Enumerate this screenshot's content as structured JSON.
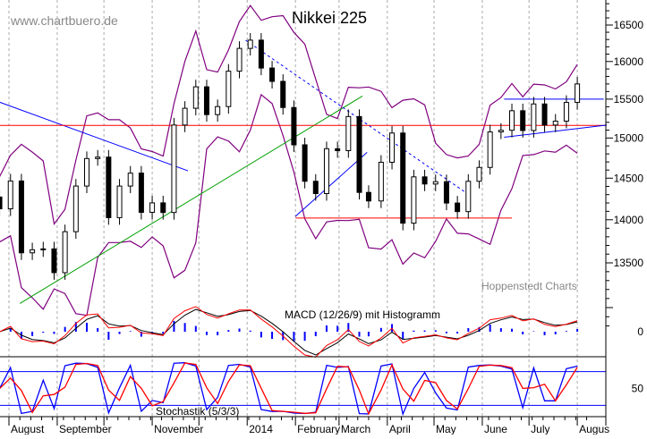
{
  "chart_data": {
    "type": "candlestick",
    "title": "Nikkei 225",
    "watermark": "www.chartbuero.de",
    "source": "Hoppenstedt Charts",
    "y_scale": "log",
    "ylim": [
      12800,
      16900
    ],
    "y_ticks": [
      16500,
      16000,
      15500,
      15000,
      14500,
      14000,
      13500
    ],
    "x_ticks": [
      {
        "date": "2013-08-01",
        "label": "August"
      },
      {
        "date": "2013-09-01",
        "label": "September"
      },
      {
        "date": "2013-10-01",
        "label": ""
      },
      {
        "date": "2013-11-01",
        "label": "November"
      },
      {
        "date": "2013-12-01",
        "label": ""
      },
      {
        "date": "2014-01-01",
        "label": "2014"
      },
      {
        "date": "2014-02-01",
        "label": "February"
      },
      {
        "date": "2014-03-01",
        "label": "March"
      },
      {
        "date": "2014-04-01",
        "label": "April"
      },
      {
        "date": "2014-05-01",
        "label": "May"
      },
      {
        "date": "2014-06-01",
        "label": "June"
      },
      {
        "date": "2014-07-01",
        "label": "July"
      },
      {
        "date": "2014-08-01",
        "label": "Augus"
      }
    ],
    "series": [
      {
        "dates": [
          "2013-07-26",
          "2013-08-02",
          "2013-08-09",
          "2013-08-16",
          "2013-08-23",
          "2013-08-30",
          "2013-09-06",
          "2013-09-13",
          "2013-09-20",
          "2013-09-27",
          "2013-10-04",
          "2013-10-11",
          "2013-10-18",
          "2013-10-25",
          "2013-11-01",
          "2013-11-08",
          "2013-11-15",
          "2013-11-22",
          "2013-11-29",
          "2013-12-06",
          "2013-12-13",
          "2013-12-20",
          "2013-12-27",
          "2014-01-03",
          "2014-01-10",
          "2014-01-17",
          "2014-01-24",
          "2014-01-31",
          "2014-02-07",
          "2014-02-14",
          "2014-02-21",
          "2014-02-28",
          "2014-03-07",
          "2014-03-14",
          "2014-03-20",
          "2014-03-28",
          "2014-04-04",
          "2014-04-11",
          "2014-04-18",
          "2014-04-25",
          "2014-05-02",
          "2014-05-09",
          "2014-05-16",
          "2014-05-23",
          "2014-05-30",
          "2014-06-06",
          "2014-06-13",
          "2014-06-20",
          "2014-06-27",
          "2014-07-04",
          "2014-07-11",
          "2014-07-18",
          "2014-07-25",
          "2014-08-01"
        ],
        "close": [
          14130,
          14466,
          13615,
          13650,
          13660,
          13389,
          13860,
          14404,
          14742,
          14760,
          14025,
          14404,
          14562,
          14088,
          14201,
          14086,
          15165,
          15381,
          15662,
          15299,
          15403,
          15870,
          16178,
          16291,
          15912,
          15734,
          15391,
          14914,
          14462,
          14313,
          14865,
          14841,
          15274,
          14327,
          14224,
          14696,
          15063,
          13960,
          14516,
          14429,
          14457,
          14199,
          14097,
          14462,
          14632,
          15077,
          15098,
          15349,
          15095,
          15437,
          15165,
          15215,
          15457,
          15700
        ]
      }
    ],
    "overlays": {
      "bollinger_color": "#800080",
      "trendlines": [
        {
          "from": [
            "2013-07-26",
            15460
          ],
          "to": [
            "2013-11-24",
            14590
          ],
          "color": "#0000ff",
          "style": "solid"
        },
        {
          "from": [
            "2013-08-08",
            13045
          ],
          "to": [
            "2014-03-16",
            15540
          ],
          "color": "#00a000",
          "style": "solid"
        },
        {
          "from": [
            "2014-02-01",
            14040
          ],
          "to": [
            "2014-03-19",
            14820
          ],
          "color": "#0000ff",
          "style": "solid"
        },
        {
          "from": [
            "2013-12-31",
            16290
          ],
          "to": [
            "2014-05-21",
            14330
          ],
          "color": "#0000ff",
          "style": "dashed"
        },
        {
          "from": [
            "2013-07-26",
            15160
          ],
          "to": [
            "2014-08-19",
            15160
          ],
          "color": "#ff0000",
          "style": "solid"
        },
        {
          "from": [
            "2014-02-01",
            14020
          ],
          "to": [
            "2014-06-20",
            14020
          ],
          "color": "#ff0000",
          "style": "solid"
        },
        {
          "from": [
            "2014-06-15",
            15500
          ],
          "to": [
            "2014-08-18",
            15500
          ],
          "color": "#0000ff",
          "style": "solid"
        },
        {
          "from": [
            "2014-06-15",
            15010
          ],
          "to": [
            "2014-08-20",
            15165
          ],
          "color": "#0000ff",
          "style": "solid"
        }
      ]
    },
    "macd": {
      "label": "MACD (12/26/9) mit Histogramm",
      "y_ticks": [
        0
      ],
      "colors": {
        "macd": "#ff0000",
        "signal": "#000000",
        "histogram": "#0000ff"
      }
    },
    "stochastic": {
      "label": "Stochastik (5/3/3)",
      "y_ticks": [
        50
      ],
      "levels": [
        80,
        20
      ],
      "colors": {
        "k": "#0000ff",
        "d": "#ff0000"
      }
    }
  }
}
